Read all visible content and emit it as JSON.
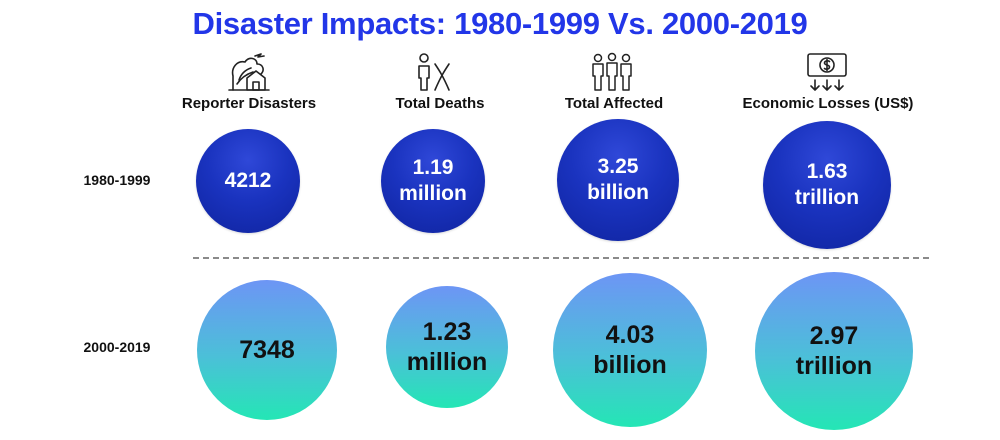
{
  "title": "Disaster Impacts: 1980-1999 Vs. 2000-2019",
  "columns": [
    {
      "label": "Reporter Disasters",
      "icon": "house-storm-icon"
    },
    {
      "label": "Total Deaths",
      "icon": "person-death-icon"
    },
    {
      "label": "Total Affected",
      "icon": "people-group-icon"
    },
    {
      "label": "Economic Losses (US$)",
      "icon": "money-loss-icon"
    }
  ],
  "rows": [
    {
      "label": "1980-1999",
      "cells": [
        [
          "4212"
        ],
        [
          "1.19",
          "million"
        ],
        [
          "3.25",
          "billion"
        ],
        [
          "1.63",
          "trillion"
        ]
      ]
    },
    {
      "label": "2000-2019",
      "cells": [
        [
          "7348"
        ],
        [
          "1.23",
          "million"
        ],
        [
          "4.03",
          "billion"
        ],
        [
          "2.97",
          "trillion"
        ]
      ]
    }
  ],
  "colors": {
    "title": "#2236e8",
    "period_1980_1999": "#1a33bf",
    "period_2000_2019_top": "#6d95f5",
    "period_2000_2019_bottom": "#24e6b5"
  },
  "chart_data": {
    "type": "table",
    "title": "Disaster Impacts: 1980-1999 Vs. 2000-2019",
    "categories": [
      "Reporter Disasters",
      "Total Deaths",
      "Total Affected",
      "Economic Losses (US$)"
    ],
    "series": [
      {
        "name": "1980-1999",
        "values": [
          4212,
          1190000,
          3250000000,
          1630000000000
        ]
      },
      {
        "name": "2000-2019",
        "values": [
          7348,
          1230000,
          4030000000,
          2970000000000
        ]
      }
    ]
  }
}
